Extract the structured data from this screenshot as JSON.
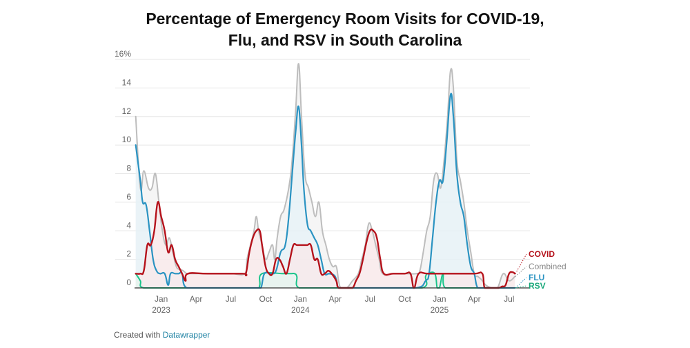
{
  "title_line1": "Percentage of Emergency Room Visits for COVID-19,",
  "title_line2": "Flu, and RSV in South Carolina",
  "footer": {
    "prefix": "Created with",
    "brand": "Datawrapper"
  },
  "colors": {
    "combined": "#bdbdbd",
    "flu": "#2a93c2",
    "covid": "#b5121b",
    "rsv": "#19c48a",
    "grid": "#e6e6e6",
    "axis": "#333333",
    "tick_text": "#666666"
  },
  "chart_data": {
    "type": "area",
    "title": "Percentage of Emergency Room Visits for COVID-19, Flu, and RSV in South Carolina",
    "y_ticks": [
      "0",
      "2",
      "4",
      "6",
      "8",
      "10",
      "12",
      "14",
      "16%"
    ],
    "ylim": [
      0,
      16
    ],
    "xlim": [
      -1.3,
      32.8
    ],
    "grid": true,
    "legend_position": "right, at line ends",
    "x_ticks": [
      {
        "label": "Jan",
        "sub": "2023",
        "x": 1
      },
      {
        "label": "Apr",
        "sub": "",
        "x": 4
      },
      {
        "label": "Jul",
        "sub": "",
        "x": 7
      },
      {
        "label": "Oct",
        "sub": "",
        "x": 10
      },
      {
        "label": "Jan",
        "sub": "2024",
        "x": 13
      },
      {
        "label": "Apr",
        "sub": "",
        "x": 16
      },
      {
        "label": "Jul",
        "sub": "",
        "x": 19
      },
      {
        "label": "Oct",
        "sub": "",
        "x": 22
      },
      {
        "label": "Jan",
        "sub": "2025",
        "x": 25
      },
      {
        "label": "Apr",
        "sub": "",
        "x": 28
      },
      {
        "label": "Jul",
        "sub": "",
        "x": 31
      }
    ],
    "series": [
      {
        "name": "Combined",
        "color": "#bdbdbd",
        "points": [
          [
            -1.2,
            12
          ],
          [
            -0.8,
            7
          ],
          [
            -0.5,
            8.2
          ],
          [
            -0.1,
            7
          ],
          [
            0.2,
            7
          ],
          [
            0.5,
            8
          ],
          [
            0.8,
            6
          ],
          [
            1.1,
            4
          ],
          [
            1.4,
            3
          ],
          [
            1.7,
            3.5
          ],
          [
            2,
            2.5
          ],
          [
            2.3,
            1.5
          ],
          [
            2.6,
            1.3
          ],
          [
            2.9,
            1.2
          ],
          [
            3.2,
            1
          ],
          [
            3.5,
            1
          ],
          [
            5,
            1
          ],
          [
            7,
            1
          ],
          [
            8.2,
            1
          ],
          [
            8.4,
            2
          ],
          [
            8.7,
            3
          ],
          [
            9,
            4
          ],
          [
            9.2,
            5
          ],
          [
            9.4,
            4
          ],
          [
            9.7,
            3
          ],
          [
            10,
            2
          ],
          [
            10.3,
            2.5
          ],
          [
            10.6,
            3
          ],
          [
            10.8,
            2
          ],
          [
            11,
            3.5
          ],
          [
            11.3,
            5
          ],
          [
            11.6,
            5.5
          ],
          [
            12,
            7
          ],
          [
            12.3,
            9
          ],
          [
            12.6,
            12.5
          ],
          [
            12.85,
            15.7
          ],
          [
            13.1,
            12
          ],
          [
            13.4,
            8
          ],
          [
            13.7,
            7
          ],
          [
            14,
            6
          ],
          [
            14.3,
            5
          ],
          [
            14.6,
            6
          ],
          [
            14.9,
            4
          ],
          [
            15.2,
            3
          ],
          [
            15.5,
            2
          ],
          [
            15.8,
            1.5
          ],
          [
            16.1,
            1.5
          ],
          [
            16.3,
            0.5
          ],
          [
            16.5,
            0
          ],
          [
            17,
            0
          ],
          [
            17.5,
            0.5
          ],
          [
            18,
            1
          ],
          [
            18.3,
            2
          ],
          [
            18.6,
            3
          ],
          [
            18.9,
            4.5
          ],
          [
            19.2,
            4
          ],
          [
            19.5,
            3
          ],
          [
            19.8,
            2
          ],
          [
            20.1,
            1
          ],
          [
            21,
            1
          ],
          [
            22,
            1
          ],
          [
            23,
            1
          ],
          [
            23.3,
            1.2
          ],
          [
            23.6,
            2.5
          ],
          [
            23.9,
            4
          ],
          [
            24.2,
            5
          ],
          [
            24.5,
            7.5
          ],
          [
            24.8,
            8
          ],
          [
            25.1,
            7
          ],
          [
            25.4,
            9
          ],
          [
            25.7,
            12
          ],
          [
            25.95,
            15.2
          ],
          [
            26.2,
            14
          ],
          [
            26.5,
            9
          ],
          [
            26.8,
            7.5
          ],
          [
            27.1,
            6
          ],
          [
            27.4,
            4
          ],
          [
            27.7,
            2.5
          ],
          [
            28,
            1
          ],
          [
            28.3,
            0.8
          ],
          [
            28.6,
            0.6
          ],
          [
            29,
            0.2
          ],
          [
            29.5,
            0
          ],
          [
            30,
            0
          ],
          [
            30.5,
            1
          ],
          [
            31,
            0.5
          ],
          [
            31.5,
            0.8
          ]
        ]
      },
      {
        "name": "FLU",
        "color": "#2a93c2",
        "points": [
          [
            -1.2,
            10
          ],
          [
            -0.8,
            7.5
          ],
          [
            -0.6,
            6
          ],
          [
            -0.3,
            5.8
          ],
          [
            0,
            4
          ],
          [
            0.3,
            2
          ],
          [
            0.6,
            1.2
          ],
          [
            0.9,
            1
          ],
          [
            1.3,
            1
          ],
          [
            1.6,
            0.2
          ],
          [
            1.8,
            1
          ],
          [
            2.2,
            1
          ],
          [
            2.5,
            1
          ],
          [
            2.8,
            1
          ],
          [
            3.2,
            0
          ],
          [
            5,
            0
          ],
          [
            8,
            0
          ],
          [
            9.2,
            0
          ],
          [
            9.6,
            0
          ],
          [
            9.9,
            1
          ],
          [
            10.5,
            1
          ],
          [
            10.9,
            1.2
          ],
          [
            11.3,
            2.5
          ],
          [
            11.7,
            3
          ],
          [
            12,
            5
          ],
          [
            12.3,
            8
          ],
          [
            12.6,
            11
          ],
          [
            12.85,
            12.7
          ],
          [
            13.1,
            10
          ],
          [
            13.3,
            7
          ],
          [
            13.6,
            4.5
          ],
          [
            13.9,
            4
          ],
          [
            14.2,
            3.5
          ],
          [
            14.5,
            3
          ],
          [
            14.8,
            2
          ],
          [
            15.1,
            1
          ],
          [
            15.5,
            1
          ],
          [
            16,
            0.8
          ],
          [
            16.3,
            0
          ],
          [
            17,
            0
          ],
          [
            20,
            0
          ],
          [
            23,
            0
          ],
          [
            23.8,
            0.5
          ],
          [
            24.1,
            1
          ],
          [
            24.4,
            3.5
          ],
          [
            24.7,
            6
          ],
          [
            25,
            7.5
          ],
          [
            25.3,
            7.5
          ],
          [
            25.6,
            10
          ],
          [
            25.95,
            13.5
          ],
          [
            26.2,
            12
          ],
          [
            26.5,
            8
          ],
          [
            26.8,
            6
          ],
          [
            27.1,
            5
          ],
          [
            27.4,
            3
          ],
          [
            27.7,
            1.5
          ],
          [
            28,
            1
          ],
          [
            28.3,
            0
          ],
          [
            29,
            0
          ],
          [
            30,
            0
          ],
          [
            31,
            0
          ],
          [
            31.5,
            0
          ]
        ]
      },
      {
        "name": "COVID",
        "color": "#b5121b",
        "points": [
          [
            -1.2,
            1
          ],
          [
            -0.8,
            1
          ],
          [
            -0.5,
            1.2
          ],
          [
            -0.2,
            3
          ],
          [
            0.1,
            3
          ],
          [
            0.4,
            4
          ],
          [
            0.7,
            6
          ],
          [
            1,
            5
          ],
          [
            1.3,
            4
          ],
          [
            1.6,
            2.5
          ],
          [
            1.9,
            3
          ],
          [
            2.2,
            2
          ],
          [
            2.5,
            1.5
          ],
          [
            2.8,
            1
          ],
          [
            3.1,
            0.5
          ],
          [
            3.3,
            1
          ],
          [
            5,
            1
          ],
          [
            8,
            1
          ],
          [
            8.3,
            1
          ],
          [
            8.6,
            2.5
          ],
          [
            8.9,
            3.5
          ],
          [
            9.2,
            4
          ],
          [
            9.5,
            4
          ],
          [
            9.7,
            3
          ],
          [
            10,
            1.5
          ],
          [
            10.3,
            1
          ],
          [
            10.6,
            1
          ],
          [
            10.9,
            2
          ],
          [
            11.2,
            2
          ],
          [
            11.5,
            1.5
          ],
          [
            11.8,
            1
          ],
          [
            12.1,
            2
          ],
          [
            12.4,
            3
          ],
          [
            12.7,
            3
          ],
          [
            13,
            3
          ],
          [
            13.3,
            3
          ],
          [
            13.6,
            3
          ],
          [
            13.9,
            3
          ],
          [
            14.2,
            2
          ],
          [
            14.5,
            2
          ],
          [
            14.8,
            1
          ],
          [
            15.1,
            1
          ],
          [
            15.4,
            1.2
          ],
          [
            15.7,
            1
          ],
          [
            16.1,
            0.5
          ],
          [
            16.3,
            0
          ],
          [
            17,
            0
          ],
          [
            17.5,
            0
          ],
          [
            17.8,
            0.5
          ],
          [
            18.1,
            1
          ],
          [
            18.4,
            2
          ],
          [
            18.7,
            3.2
          ],
          [
            19,
            4
          ],
          [
            19.3,
            4
          ],
          [
            19.6,
            3.5
          ],
          [
            19.9,
            2
          ],
          [
            20.2,
            1
          ],
          [
            21,
            1
          ],
          [
            22,
            1
          ],
          [
            22.5,
            1
          ],
          [
            22.8,
            0
          ],
          [
            23.2,
            1
          ],
          [
            24,
            1
          ],
          [
            26,
            1
          ],
          [
            28,
            1
          ],
          [
            28.7,
            1
          ],
          [
            28.9,
            0
          ],
          [
            29.5,
            0
          ],
          [
            30.1,
            0
          ],
          [
            30.4,
            0.1
          ],
          [
            30.7,
            0.2
          ],
          [
            31,
            1
          ],
          [
            31.3,
            1.1
          ],
          [
            31.5,
            1
          ]
        ]
      },
      {
        "name": "RSV",
        "color": "#19c48a",
        "points": [
          [
            -1.2,
            1
          ],
          [
            -0.8,
            0.5
          ],
          [
            -0.5,
            0
          ],
          [
            2,
            0
          ],
          [
            5,
            0
          ],
          [
            8,
            0
          ],
          [
            9.3,
            0
          ],
          [
            9.5,
            0.2
          ],
          [
            9.7,
            1
          ],
          [
            11.5,
            1
          ],
          [
            11.8,
            1
          ],
          [
            12.2,
            1
          ],
          [
            12.5,
            1
          ],
          [
            12.7,
            0.8
          ],
          [
            12.9,
            0
          ],
          [
            15,
            0
          ],
          [
            20,
            0
          ],
          [
            23.5,
            0
          ],
          [
            23.8,
            0.8
          ],
          [
            24,
            1
          ],
          [
            24.6,
            1
          ],
          [
            24.8,
            0
          ],
          [
            25,
            0
          ],
          [
            25.3,
            1
          ],
          [
            25.5,
            0
          ],
          [
            27,
            0
          ],
          [
            29,
            0
          ],
          [
            31,
            0
          ],
          [
            31.5,
            0
          ]
        ]
      }
    ],
    "end_labels": [
      {
        "name": "COVID",
        "color": "#b5121b",
        "weight": "bold"
      },
      {
        "name": "Combined",
        "color": "#888888",
        "weight": "normal"
      },
      {
        "name": "FLU",
        "color": "#2a93c2",
        "weight": "bold"
      },
      {
        "name": "RSV",
        "color": "#19a87a",
        "weight": "bold"
      }
    ]
  }
}
